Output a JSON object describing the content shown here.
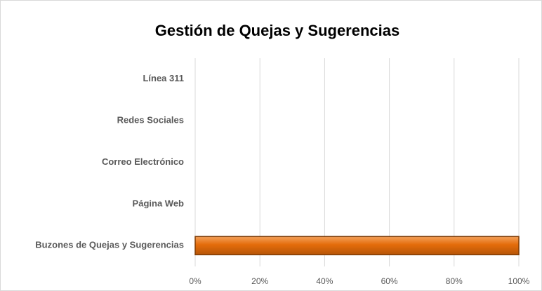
{
  "chart_data": {
    "type": "hbar",
    "title": "Gestión de Quejas y Sugerencias",
    "categories": [
      "Línea 311",
      "Redes Sociales",
      "Correo Electrónico",
      "Página Web",
      "Buzones de Quejas y Sugerencias"
    ],
    "values": [
      0,
      0,
      0,
      0,
      100
    ],
    "color": "#e46c0a",
    "xlim": [
      0,
      100
    ],
    "xticks": [
      {
        "value": 0,
        "label": "0%"
      },
      {
        "value": 20,
        "label": "20%"
      },
      {
        "value": 40,
        "label": "40%"
      },
      {
        "value": 60,
        "label": "60%"
      },
      {
        "value": 80,
        "label": "80%"
      },
      {
        "value": 100,
        "label": "100%"
      }
    ],
    "grid": true
  }
}
